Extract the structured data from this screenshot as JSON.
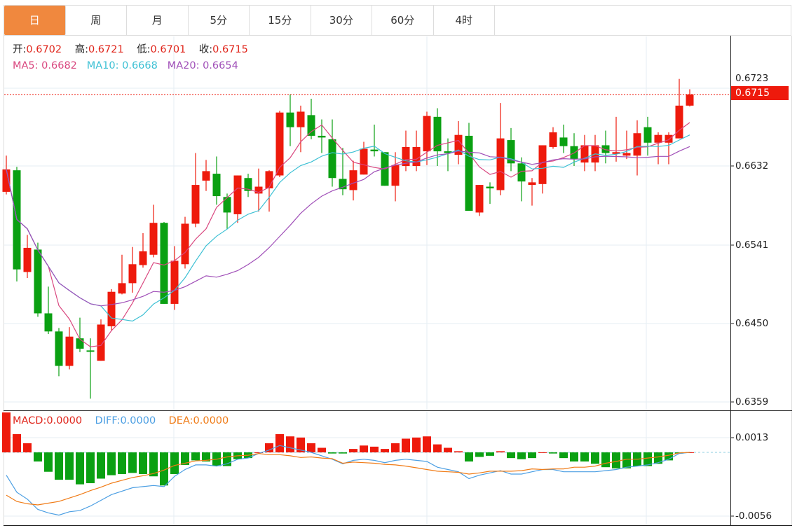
{
  "tabs": [
    {
      "label": "日",
      "active": true
    },
    {
      "label": "周"
    },
    {
      "label": "月"
    },
    {
      "label": "5分"
    },
    {
      "label": "15分"
    },
    {
      "label": "30分"
    },
    {
      "label": "60分"
    },
    {
      "label": "4时"
    }
  ],
  "legend": {
    "open_label": "开:",
    "open": "0.6702",
    "high_label": "高:",
    "high": "0.6721",
    "low_label": "低:",
    "low": "0.6701",
    "close_label": "收:",
    "close": "0.6715",
    "ma5_label": "MA5:",
    "ma5": "0.6682",
    "ma10_label": "MA10:",
    "ma10": "0.6668",
    "ma20_label": "MA20:",
    "ma20": "0.6654"
  },
  "macd_legend": {
    "macd_label": "MACD:",
    "macd": "0.0000",
    "diff_label": "DIFF:",
    "diff": "0.0000",
    "dea_label": "DEA:",
    "dea": "0.0000"
  },
  "price_axis": {
    "ticks": [
      "0.6723",
      "0.6632",
      "0.6541",
      "0.6450",
      "0.6359"
    ],
    "current": "0.6715"
  },
  "macd_axis": {
    "ticks": [
      "0.0013",
      "-0.0056"
    ]
  },
  "colors": {
    "up": "#ee1a0c",
    "down": "#0aa012",
    "ma5": "#d9477f",
    "ma10": "#3cc0d4",
    "ma20": "#a04fb8",
    "diff": "#4c9fe3",
    "dea": "#f07b16",
    "active_tab": "#f0883e"
  },
  "chart_data": {
    "type": "candlestick",
    "title": "",
    "ylim": [
      0.6352,
      0.674
    ],
    "candles": [
      [
        0.6602,
        0.6644,
        0.6599,
        0.6628
      ],
      [
        0.6627,
        0.6631,
        0.6498,
        0.6512
      ],
      [
        0.6509,
        0.6552,
        0.6502,
        0.6537
      ],
      [
        0.6535,
        0.6543,
        0.6457,
        0.6461
      ],
      [
        0.6461,
        0.6492,
        0.6437,
        0.644
      ],
      [
        0.644,
        0.6444,
        0.6388,
        0.64
      ],
      [
        0.64,
        0.6445,
        0.6396,
        0.6434
      ],
      [
        0.6432,
        0.6456,
        0.6416,
        0.642
      ],
      [
        0.6418,
        0.6432,
        0.6362,
        0.6417
      ],
      [
        0.6406,
        0.6454,
        0.6406,
        0.6448
      ],
      [
        0.6446,
        0.6489,
        0.6441,
        0.6486
      ],
      [
        0.6484,
        0.6529,
        0.6483,
        0.6496
      ],
      [
        0.6496,
        0.6538,
        0.6485,
        0.6518
      ],
      [
        0.6517,
        0.6554,
        0.6514,
        0.6533
      ],
      [
        0.6529,
        0.6587,
        0.6526,
        0.6566
      ],
      [
        0.6566,
        0.6567,
        0.6472,
        0.6472
      ],
      [
        0.6472,
        0.6539,
        0.6465,
        0.6522
      ],
      [
        0.6518,
        0.6573,
        0.6513,
        0.6565
      ],
      [
        0.6565,
        0.6647,
        0.6561,
        0.661
      ],
      [
        0.6615,
        0.6639,
        0.6603,
        0.6626
      ],
      [
        0.6623,
        0.6643,
        0.6587,
        0.6597
      ],
      [
        0.6596,
        0.66,
        0.6559,
        0.6578
      ],
      [
        0.6576,
        0.6621,
        0.6566,
        0.6621
      ],
      [
        0.6618,
        0.6623,
        0.6596,
        0.6603
      ],
      [
        0.66,
        0.6629,
        0.6579,
        0.6608
      ],
      [
        0.6606,
        0.6627,
        0.6579,
        0.6626
      ],
      [
        0.6621,
        0.6696,
        0.6619,
        0.6694
      ],
      [
        0.6694,
        0.6715,
        0.6655,
        0.6677
      ],
      [
        0.6677,
        0.6702,
        0.6648,
        0.6695
      ],
      [
        0.6691,
        0.671,
        0.6663,
        0.6667
      ],
      [
        0.6667,
        0.6686,
        0.6647,
        0.6665
      ],
      [
        0.6663,
        0.6686,
        0.6608,
        0.6618
      ],
      [
        0.6617,
        0.6653,
        0.6598,
        0.6605
      ],
      [
        0.6604,
        0.6638,
        0.6592,
        0.6627
      ],
      [
        0.6622,
        0.666,
        0.6622,
        0.6652
      ],
      [
        0.6651,
        0.668,
        0.6643,
        0.6649
      ],
      [
        0.6648,
        0.6648,
        0.6609,
        0.6609
      ],
      [
        0.6609,
        0.6648,
        0.6591,
        0.6633
      ],
      [
        0.6632,
        0.6673,
        0.6626,
        0.6654
      ],
      [
        0.6632,
        0.6673,
        0.6626,
        0.6654
      ],
      [
        0.6649,
        0.6695,
        0.6633,
        0.669
      ],
      [
        0.6689,
        0.6699,
        0.6632,
        0.6649
      ],
      [
        0.6649,
        0.6664,
        0.6626,
        0.6647
      ],
      [
        0.6645,
        0.6684,
        0.6634,
        0.6668
      ],
      [
        0.6667,
        0.6682,
        0.658,
        0.658
      ],
      [
        0.6578,
        0.661,
        0.6574,
        0.661
      ],
      [
        0.6608,
        0.6613,
        0.6588,
        0.6606
      ],
      [
        0.6604,
        0.6705,
        0.6598,
        0.6664
      ],
      [
        0.6662,
        0.6676,
        0.6626,
        0.6635
      ],
      [
        0.6635,
        0.6642,
        0.6591,
        0.6614
      ],
      [
        0.661,
        0.6618,
        0.6586,
        0.6613
      ],
      [
        0.6611,
        0.6656,
        0.66,
        0.6656
      ],
      [
        0.6654,
        0.6677,
        0.6652,
        0.6671
      ],
      [
        0.6665,
        0.668,
        0.6647,
        0.6655
      ],
      [
        0.6655,
        0.667,
        0.6632,
        0.664
      ],
      [
        0.6636,
        0.6668,
        0.6626,
        0.6656
      ],
      [
        0.6636,
        0.6668,
        0.6626,
        0.6656
      ],
      [
        0.6656,
        0.6673,
        0.6635,
        0.6647
      ],
      [
        0.6646,
        0.6689,
        0.6637,
        0.6648
      ],
      [
        0.6644,
        0.6673,
        0.664,
        0.6647
      ],
      [
        0.6644,
        0.6685,
        0.6621,
        0.667
      ],
      [
        0.6677,
        0.6689,
        0.6644,
        0.6659
      ],
      [
        0.6659,
        0.6671,
        0.6634,
        0.6668
      ],
      [
        0.6659,
        0.6671,
        0.6634,
        0.6668
      ],
      [
        0.6664,
        0.6733,
        0.6664,
        0.6702
      ],
      [
        0.6702,
        0.6721,
        0.6701,
        0.6715
      ]
    ],
    "macd": {
      "ylim": [
        -0.0062,
        0.0022
      ],
      "hist": [
        0.0035,
        0.0016,
        0.0008,
        -0.0008,
        -0.0017,
        -0.0024,
        -0.0024,
        -0.0028,
        -0.0027,
        -0.0023,
        -0.002,
        -0.0019,
        -0.0018,
        -0.0019,
        -0.0021,
        -0.0029,
        -0.0019,
        -0.0011,
        -0.0007,
        -0.0008,
        -0.0012,
        -0.0012,
        -0.0006,
        -0.0005,
        0.0,
        0.0008,
        0.0016,
        0.0014,
        0.0013,
        0.0008,
        0.0004,
        -0.0001,
        -0.0001,
        0.0003,
        0.0006,
        0.0005,
        0.0003,
        0.0008,
        0.0012,
        0.0013,
        0.0014,
        0.0007,
        0.0004,
        0.0001,
        -0.0008,
        -0.0004,
        -0.0003,
        0.0001,
        -0.0005,
        -0.0006,
        -0.0005,
        0.0,
        -0.0001,
        -0.0005,
        -0.0008,
        -0.0008,
        -0.001,
        -0.0013,
        -0.0014,
        -0.0014,
        -0.0012,
        -0.0012,
        -0.001,
        -0.0007,
        -0.0001,
        0.0
      ],
      "diff": [
        -0.002,
        -0.0035,
        -0.0041,
        -0.005,
        -0.0053,
        -0.0055,
        -0.0052,
        -0.0051,
        -0.0047,
        -0.0042,
        -0.0037,
        -0.0034,
        -0.0031,
        -0.003,
        -0.0029,
        -0.003,
        -0.0021,
        -0.0015,
        -0.0011,
        -0.0011,
        -0.0012,
        -0.001,
        -0.0006,
        -0.0005,
        -0.0001,
        0.0002,
        0.0006,
        0.0004,
        0.0002,
        0.0,
        -0.0003,
        -0.0006,
        -0.001,
        -0.0007,
        -0.0006,
        -0.0007,
        -0.0009,
        -0.0007,
        -0.0006,
        -0.0007,
        -0.0008,
        -0.0013,
        -0.0015,
        -0.0017,
        -0.0023,
        -0.002,
        -0.0018,
        -0.0016,
        -0.0019,
        -0.0019,
        -0.0017,
        -0.0015,
        -0.0015,
        -0.0017,
        -0.0017,
        -0.0017,
        -0.0017,
        -0.0016,
        -0.0015,
        -0.0013,
        -0.0012,
        -0.0011,
        -0.0009,
        -0.0006,
        -0.0001,
        0.0
      ]
    }
  }
}
